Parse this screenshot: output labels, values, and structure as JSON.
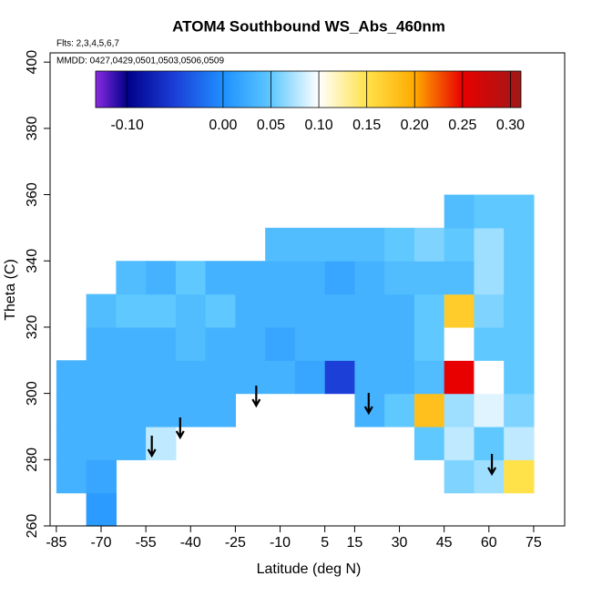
{
  "chart_data": {
    "type": "heatmap",
    "title": "ATOM4 Southbound WS_Abs_460nm",
    "subtitles": [
      "Flts: 2,3,4,5,6,7",
      "MMDD: 0427,0429,0501,0503,0506,0509"
    ],
    "x_label": "Latitude (deg N)",
    "y_label": "Theta (C)",
    "xlim": [
      -87.1,
      85.4
    ],
    "ylim": [
      260,
      402.8
    ],
    "xticks": [
      -85,
      -70,
      -55,
      -40,
      -25,
      -10,
      5,
      15,
      30,
      45,
      60,
      75
    ],
    "yticks": [
      260,
      280,
      300,
      320,
      340,
      360,
      380,
      400
    ],
    "cell_width": 10,
    "cell_height": 10,
    "x": [
      -80,
      -70,
      -60,
      -50,
      -40,
      -30,
      -20,
      -10,
      0,
      10,
      20,
      30,
      40,
      50,
      60,
      70
    ],
    "y": [
      265,
      275,
      285,
      295,
      305,
      315,
      325,
      335,
      345,
      355
    ],
    "z": [
      [
        null,
        0.01,
        null,
        null,
        null,
        null,
        null,
        null,
        null,
        null,
        null,
        null,
        null,
        null,
        null,
        null
      ],
      [
        0.03,
        0.02,
        null,
        null,
        null,
        null,
        null,
        null,
        null,
        null,
        null,
        null,
        null,
        0.06,
        0.07,
        0.15
      ],
      [
        0.03,
        0.03,
        0.03,
        0.08,
        null,
        null,
        null,
        null,
        null,
        null,
        null,
        null,
        0.05,
        0.08,
        0.05,
        0.08
      ],
      [
        0.03,
        0.03,
        0.03,
        0.03,
        0.03,
        0.03,
        null,
        null,
        null,
        null,
        0.03,
        0.05,
        0.18,
        0.07,
        0.09,
        0.06
      ],
      [
        0.03,
        0.03,
        0.03,
        0.03,
        0.03,
        0.03,
        0.03,
        0.03,
        0.02,
        -0.05,
        0.03,
        0.03,
        0.04,
        0.25,
        0.1,
        0.05
      ],
      [
        null,
        0.03,
        0.03,
        0.03,
        0.04,
        0.03,
        0.03,
        0.02,
        0.03,
        0.03,
        0.03,
        0.03,
        0.05,
        0.1,
        0.05,
        0.05
      ],
      [
        null,
        0.04,
        0.05,
        0.05,
        0.04,
        0.05,
        0.03,
        0.03,
        0.03,
        0.03,
        0.03,
        0.03,
        0.05,
        0.17,
        0.06,
        0.05
      ],
      [
        null,
        null,
        0.04,
        0.03,
        0.05,
        0.03,
        0.03,
        0.03,
        0.03,
        0.02,
        0.03,
        0.04,
        0.04,
        0.04,
        0.07,
        0.05
      ],
      [
        null,
        null,
        null,
        null,
        null,
        null,
        null,
        0.04,
        0.04,
        0.04,
        0.04,
        0.05,
        0.06,
        0.05,
        0.07,
        0.05
      ],
      [
        null,
        null,
        null,
        null,
        null,
        null,
        null,
        null,
        null,
        null,
        null,
        null,
        null,
        0.04,
        0.05,
        0.05
      ]
    ],
    "colorbar": {
      "lim": [
        -0.133,
        0.311
      ],
      "ticks": [
        {
          "value": -0.1,
          "label": "-0.10"
        },
        {
          "value": 0,
          "label": "0.00"
        },
        0.05,
        {
          "value": 0.1,
          "label": "0.10"
        },
        0.15,
        {
          "value": 0.2,
          "label": "0.20"
        },
        0.25,
        {
          "value": 0.3,
          "label": "0.30"
        }
      ],
      "stops": [
        {
          "value": -0.133,
          "color": "#8a2be2"
        },
        {
          "value": -0.1,
          "color": "#00008b"
        },
        {
          "value": -0.05,
          "color": "#1c3fd8"
        },
        {
          "value": 0,
          "color": "#1e90ff"
        },
        {
          "value": 0.05,
          "color": "#5ec8ff"
        },
        {
          "value": 0.1,
          "color": "#ffffff"
        },
        {
          "value": 0.15,
          "color": "#ffe24a"
        },
        {
          "value": 0.2,
          "color": "#ffaa00"
        },
        {
          "value": 0.25,
          "color": "#e80000"
        },
        {
          "value": 0.311,
          "color": "#a01818"
        }
      ]
    },
    "arrows": [
      {
        "x": -53,
        "y": 281.2
      },
      {
        "x": -43.5,
        "y": 286.7
      },
      {
        "x": -18,
        "y": 296.3
      },
      {
        "x": 19.7,
        "y": 294.1
      },
      {
        "x": 61,
        "y": 275.7
      }
    ]
  }
}
